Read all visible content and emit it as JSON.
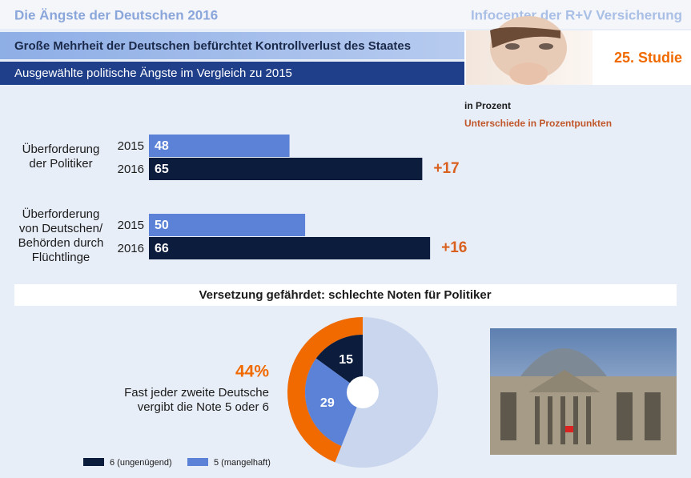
{
  "header": {
    "title": "Die Ängste der Deutschen 2016",
    "source": "Infocenter der R+V Versicherung",
    "headline": "Große Mehrheit der Deutschen befürchtet Kontrollverlust des Staates",
    "subheadline": "Ausgewählte politische Ängste im Vergleich zu 2015",
    "study": "25. Studie"
  },
  "chart_data": [
    {
      "type": "bar",
      "unit_note": "in Prozent",
      "difference_note": "Unterschiede in Prozentpunkten",
      "categories": [
        "Überforderung\nder Politiker",
        "Überforderung\nvon Deutschen/\nBehörden durch\nFlüchtlinge"
      ],
      "series": [
        {
          "name": "2015",
          "color": "#5b82d6",
          "values": [
            48,
            50
          ]
        },
        {
          "name": "2016",
          "color": "#0c1c3c",
          "values": [
            65,
            66
          ]
        }
      ],
      "differences": [
        17,
        16
      ],
      "difference_labels": [
        "+17",
        "+16"
      ],
      "difference_color": "#d9601e",
      "xlim": [
        30,
        95
      ]
    },
    {
      "type": "donut",
      "title": "Versetzung gefährdet: schlechte Noten für Politiker",
      "categories": [
        "6 (ungenügend)",
        "5 (mangelhaft)"
      ],
      "values": [
        15,
        29
      ],
      "colors": [
        "#0c1c3c",
        "#5b82d6"
      ],
      "total": 44,
      "total_label": "44%",
      "total_color": "#f06a00",
      "rest_color": "#c9d6ee",
      "annotation": "Fast jeder zweite Deutsche\nvergibt die Note 5 oder 6"
    }
  ]
}
